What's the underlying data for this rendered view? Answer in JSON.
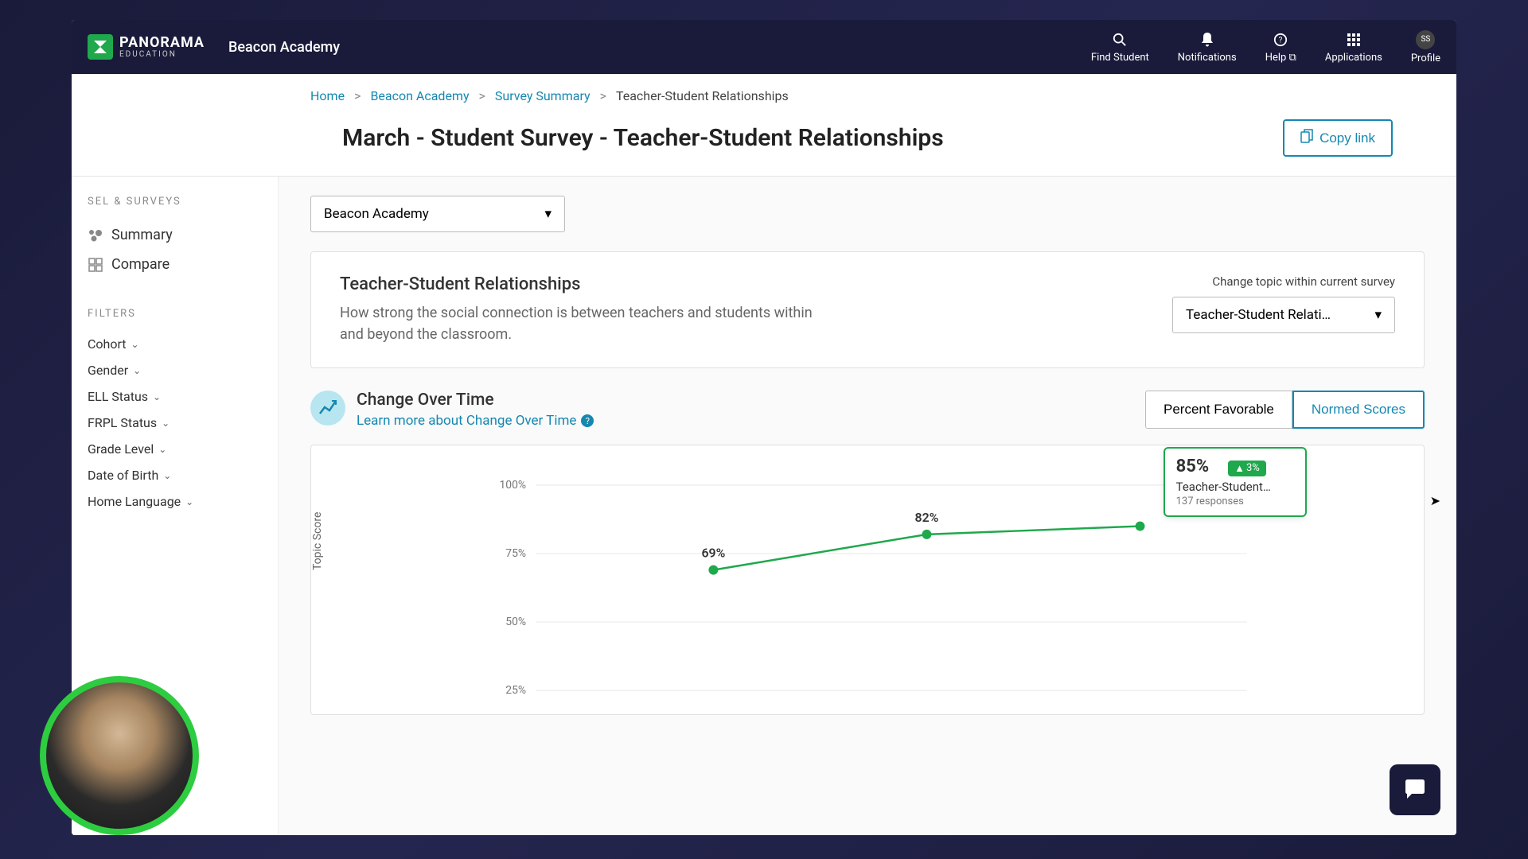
{
  "header": {
    "logo_text": "PANORAMA",
    "logo_sub": "EDUCATION",
    "school_name": "Beacon Academy",
    "nav": {
      "find_student": "Find Student",
      "notifications": "Notifications",
      "help": "Help",
      "applications": "Applications",
      "profile": "Profile",
      "profile_initials": "SS"
    }
  },
  "breadcrumb": {
    "home": "Home",
    "school": "Beacon Academy",
    "summary": "Survey Summary",
    "current": "Teacher-Student Relationships"
  },
  "page": {
    "title": "March - Student Survey - Teacher-Student Relationships",
    "copy_link": "Copy link"
  },
  "sidebar": {
    "heading": "SEL & SURVEYS",
    "summary": "Summary",
    "compare": "Compare",
    "filters_heading": "FILTERS",
    "filters": [
      "Cohort",
      "Gender",
      "ELL Status",
      "FRPL Status",
      "Grade Level",
      "Date of Birth",
      "Home Language"
    ]
  },
  "content": {
    "school_select": "Beacon Academy",
    "topic": {
      "title": "Teacher-Student Relationships",
      "desc": "How strong the social connection is between teachers and students within and beyond the classroom.",
      "change_label": "Change topic within current survey",
      "select_value": "Teacher-Student Relati…"
    },
    "chart": {
      "title": "Change Over Time",
      "learn_more": "Learn more about Change Over Time",
      "toggle_favorable": "Percent Favorable",
      "toggle_normed": "Normed Scores",
      "y_label": "Topic Score",
      "type": "line",
      "y_ticks": [
        "100%",
        "75%",
        "50%",
        "25%"
      ],
      "y_values": [
        100,
        75,
        50,
        25
      ],
      "ylim": [
        25,
        100
      ],
      "points": [
        {
          "x": 0.25,
          "value": 69,
          "label": "69%"
        },
        {
          "x": 0.55,
          "value": 82,
          "label": "82%"
        },
        {
          "x": 0.85,
          "value": 85,
          "label": "85%"
        }
      ],
      "line_color": "#1fa84c",
      "grid_color": "#e8e8e8",
      "tooltip": {
        "pct": "85%",
        "delta": "3%",
        "label": "Teacher-Student…",
        "responses": "137 responses"
      }
    }
  }
}
